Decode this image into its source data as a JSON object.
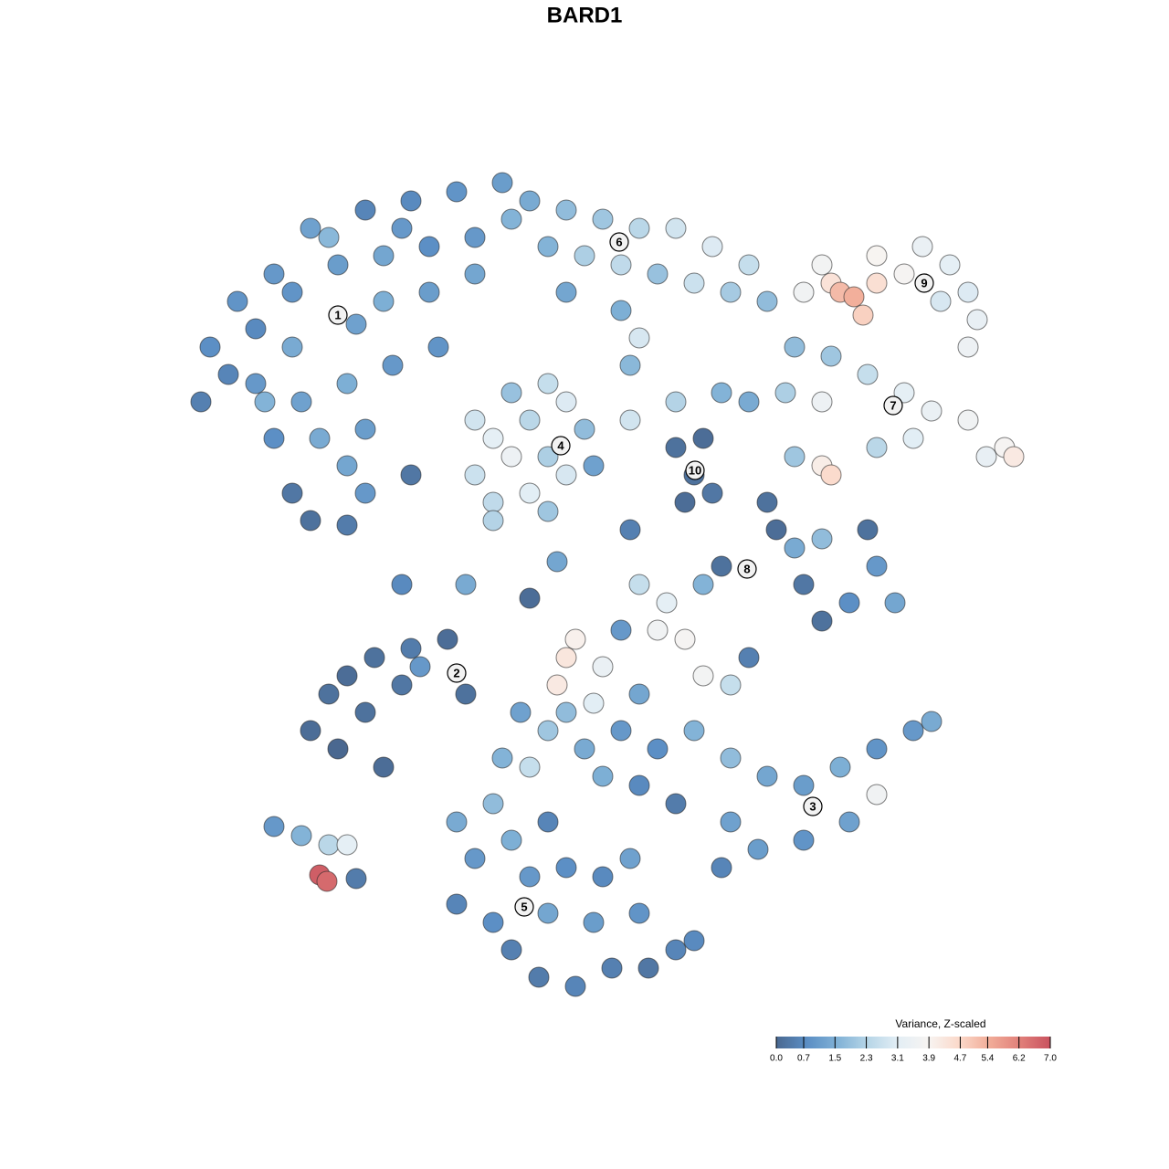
{
  "chart_data": {
    "type": "scatter",
    "title": "BARD1",
    "xlim": [
      -12,
      12
    ],
    "ylim": [
      -12,
      12
    ],
    "x": [
      -8.2,
      -7.6,
      -6.8,
      -6.0,
      -4.8,
      -3.8,
      -2.8,
      -1.8,
      -1.6,
      -2.4,
      -3.4,
      -4.4,
      -5.4,
      -6.4,
      -7.2,
      -7.8,
      -8.4,
      -7.2,
      -6.4,
      -5.0,
      -4.4,
      -3.4,
      -2.4,
      -6.2,
      -5.2,
      -4.2,
      -3.2,
      -6.8,
      -5.8,
      -4.8,
      -6.4,
      -6.0,
      -5.2,
      -4.8,
      -5.2,
      -7.0,
      -5.6,
      -4.0,
      -1.2,
      -0.4,
      0.4,
      1.2,
      2.0,
      2.8,
      3.6,
      -0.8,
      0,
      0.8,
      1.6,
      2.4,
      3.2,
      4.0,
      -0.4,
      0.8,
      1.2,
      1.0,
      4.8,
      5.4,
      5.6,
      5.9,
      6.1,
      6.4,
      7.0,
      7.4,
      8.0,
      8.4,
      8.6,
      7.8,
      8.4,
      5.2,
      6.4,
      4.6,
      5.4,
      6.2,
      7.0,
      7.6,
      8.4,
      9.2,
      9.4,
      8.8,
      7.2,
      6.4,
      5.2,
      4.4,
      5.2,
      5.4,
      4.6,
      -2.4,
      -2.0,
      -1.6,
      -1.2,
      -0.8,
      -0.4,
      0,
      -0.8,
      -0.4,
      -1.2,
      -2.0,
      -2.4,
      -1.6,
      0.2,
      -2.0,
      -0.8,
      1.0,
      2.0,
      3.0,
      3.6,
      2.0,
      2.6,
      2.4,
      2.8,
      2.2,
      4.0,
      4.2,
      4.6,
      5.2,
      6.2,
      6.4,
      6.8,
      5.2,
      4.8,
      3.0,
      2.6,
      5.8,
      1.2,
      1.8,
      1.6,
      2.2,
      -0.2,
      -0.4,
      0.4,
      2.6,
      3.2,
      -0.6,
      0.2,
      0.8,
      3.6,
      -6.0,
      -5.4,
      -4.8,
      -5.2,
      -4.6,
      -3.8,
      -3.0,
      -2.6,
      -4.0,
      -4.4,
      -5.6,
      -3.6,
      -6.8,
      -6.2,
      -5.6,
      -5.2,
      -5.8,
      -5.64,
      -5.0,
      -1.4,
      -0.8,
      0,
      0.8,
      1.6,
      2.4,
      3.2,
      4.0,
      4.8,
      5.6,
      6.4,
      7.2,
      7.6,
      6.4,
      5.8,
      4.8,
      3.8,
      3.0,
      3.2,
      2.0,
      1.2,
      0.4,
      -1.2,
      -1.8,
      -0.4,
      1.2,
      -2.8,
      -2.4,
      -2.8,
      -2.0,
      -1.6,
      -1.0,
      -0.2,
      0.6,
      1.4,
      2.0,
      2.4,
      1.2,
      0.2,
      -0.8,
      -1.2,
      -0.4,
      0.4,
      1.0,
      -1.6,
      -2.0,
      -0.8,
      -2.6,
      -4.0,
      -1.2,
      -3.8,
      1.0,
      -0.6
    ],
    "y": [
      5.2,
      6.2,
      6.8,
      7.8,
      8.2,
      8.4,
      8.6,
      8.8,
      8.0,
      7.6,
      7.4,
      7.2,
      7.0,
      6.4,
      5.6,
      4.6,
      4.0,
      4.4,
      5.2,
      5.7,
      6.2,
      6.4,
      6.8,
      4.0,
      4.4,
      4.8,
      5.2,
      3.2,
      3.2,
      3.4,
      2.0,
      1.4,
      1.3,
      2.0,
      2.6,
      4.0,
      7.6,
      7.8,
      8.4,
      8.2,
      8.0,
      7.8,
      7.8,
      7.4,
      7.0,
      7.4,
      7.2,
      7.0,
      6.8,
      6.6,
      6.4,
      6.2,
      6.4,
      6.0,
      5.4,
      4.8,
      6.4,
      6.6,
      6.4,
      6.3,
      5.9,
      6.6,
      6.8,
      7.4,
      7.0,
      6.4,
      5.8,
      6.2,
      5.2,
      7.0,
      7.2,
      5.2,
      5.0,
      4.6,
      4.2,
      3.8,
      3.6,
      3.0,
      2.8,
      2.8,
      3.2,
      3.0,
      4.0,
      4.2,
      2.6,
      2.4,
      2.8,
      3.6,
      3.2,
      2.8,
      3.6,
      4.4,
      4.0,
      3.4,
      2.8,
      2.4,
      2.0,
      1.8,
      2.4,
      4.2,
      2.6,
      1.4,
      1.6,
      3.6,
      4.0,
      4.2,
      4.0,
      3.0,
      3.2,
      2.4,
      2.0,
      1.8,
      1.8,
      1.2,
      0.8,
      1.0,
      1.2,
      0.4,
      -0.4,
      -0.8,
      0,
      0.4,
      0,
      -0.4,
      0,
      -0.4,
      -1.0,
      -1.2,
      -1.2,
      -1.6,
      -1.8,
      -2.0,
      -2.2,
      -2.2,
      -2.6,
      -1.0,
      -1.6,
      -3.2,
      -3.6,
      -2.8,
      -2.0,
      -1.6,
      -1.4,
      -1.2,
      -2.4,
      -2.2,
      -4.0,
      -2.4,
      -1.8,
      -5.3,
      -5.5,
      -5.7,
      -5.7,
      -6.36,
      -6.5,
      -6.44,
      -2.8,
      -3.2,
      -3.6,
      -3.2,
      -3.6,
      -3.2,
      -3.8,
      -4.2,
      -4.4,
      -4.0,
      -3.6,
      -3.2,
      -3.0,
      -4.6,
      -5.2,
      -5.6,
      -5.8,
      -6.2,
      -5.2,
      -4.8,
      -4.4,
      -4.2,
      -4.0,
      -3.8,
      -2.8,
      -2.4,
      -5.2,
      -6.0,
      -7.0,
      -7.4,
      -8.0,
      -8.6,
      -8.8,
      -8.4,
      -8.4,
      -8.0,
      -7.8,
      -7.2,
      -7.4,
      -7.2,
      -6.4,
      -6.2,
      -6.4,
      -6.0,
      -5.6,
      -4.8,
      -5.2,
      0,
      0,
      -0.3,
      2.4,
      1.2,
      0.5
    ],
    "color_values": [
      0.8,
      0.9,
      1.0,
      1.2,
      0.6,
      0.7,
      0.9,
      1.1,
      1.6,
      1.0,
      0.8,
      1.3,
      1.1,
      0.9,
      0.7,
      0.6,
      0.5,
      1.0,
      1.4,
      1.2,
      1.5,
      1.1,
      1.3,
      1.2,
      1.5,
      1.0,
      0.9,
      0.8,
      1.4,
      1.1,
      0.3,
      0.2,
      0.4,
      1.0,
      1.3,
      1.6,
      1.7,
      1.0,
      1.4,
      1.8,
      2.0,
      2.4,
      2.8,
      3.0,
      2.6,
      1.6,
      2.2,
      2.5,
      1.9,
      2.7,
      2.1,
      1.8,
      1.3,
      1.5,
      2.9,
      1.7,
      3.6,
      4.4,
      5.2,
      5.4,
      4.8,
      4.5,
      3.8,
      3.4,
      3.2,
      3.0,
      3.3,
      2.9,
      3.5,
      3.7,
      3.9,
      1.8,
      2.0,
      2.6,
      3.2,
      3.4,
      3.6,
      3.8,
      4.2,
      3.3,
      3.1,
      2.4,
      3.5,
      2.2,
      4.1,
      4.6,
      2.0,
      2.8,
      3.2,
      3.5,
      2.4,
      2.6,
      3.0,
      1.8,
      2.2,
      2.9,
      3.1,
      2.5,
      2.7,
      1.9,
      1.2,
      2.3,
      2.0,
      2.8,
      2.3,
      1.6,
      1.4,
      0.2,
      0.1,
      0.2,
      0.3,
      0.1,
      0.2,
      0.1,
      1.4,
      1.8,
      0.2,
      1.0,
      1.3,
      0.2,
      0.3,
      0.2,
      1.6,
      0.8,
      2.6,
      3.2,
      3.6,
      3.8,
      4.0,
      4.3,
      3.4,
      3.7,
      2.6,
      4.2,
      3.1,
      1.0,
      0.5,
      0.1,
      0.0,
      0.2,
      0.1,
      0.2,
      0.4,
      0.1,
      0.2,
      0.3,
      0.1,
      0.2,
      1.0,
      1.0,
      1.6,
      2.4,
      3.2,
      6.8,
      6.6,
      0.4,
      1.2,
      2.0,
      1.4,
      1.0,
      0.8,
      1.6,
      1.8,
      1.3,
      1.1,
      1.5,
      0.9,
      1.0,
      1.4,
      3.6,
      1.2,
      0.9,
      1.1,
      0.6,
      1.2,
      0.4,
      0.7,
      1.5,
      2.6,
      1.6,
      1.8,
      1.3,
      1.4,
      1.0,
      0.6,
      0.8,
      0.5,
      0.4,
      0.6,
      0.5,
      0.3,
      0.6,
      0.7,
      0.9,
      1.1,
      1.3,
      1.0,
      0.8,
      0.7,
      1.2,
      1.5,
      1.8,
      0.6,
      1.4,
      0.7,
      0.1,
      0.3,
      0.5,
      1.3
    ],
    "cluster_labels": [
      {
        "text": "1",
        "x": -5.4,
        "y": 5.9
      },
      {
        "text": "2",
        "x": -2.8,
        "y": -1.94
      },
      {
        "text": "3",
        "x": 5.0,
        "y": -4.86
      },
      {
        "text": "4",
        "x": -0.52,
        "y": 3.04
      },
      {
        "text": "5",
        "x": -1.32,
        "y": -7.06
      },
      {
        "text": "6",
        "x": 0.76,
        "y": 7.5
      },
      {
        "text": "7",
        "x": 6.76,
        "y": 3.92
      },
      {
        "text": "8",
        "x": 3.56,
        "y": 0.34
      },
      {
        "text": "9",
        "x": 7.44,
        "y": 6.6
      },
      {
        "text": "10",
        "x": 2.42,
        "y": 2.5
      }
    ],
    "colorbar": {
      "title": "Variance, Z-scaled",
      "lim": [
        0,
        7
      ],
      "ticks": [
        {
          "value": 0,
          "label": "0.0"
        },
        0.7,
        1.5,
        2.3,
        3.1,
        3.9,
        4.7,
        5.4,
        6.2,
        {
          "value": 7,
          "label": "7.0"
        }
      ],
      "colors": [
        "#4a6890",
        "#5b8ec4",
        "#80b1d6",
        "#b6d5e7",
        "#e3eef5",
        "#f7f4f2",
        "#fbd9ca",
        "#f1ac98",
        "#e1807a",
        "#c9525f"
      ]
    }
  }
}
